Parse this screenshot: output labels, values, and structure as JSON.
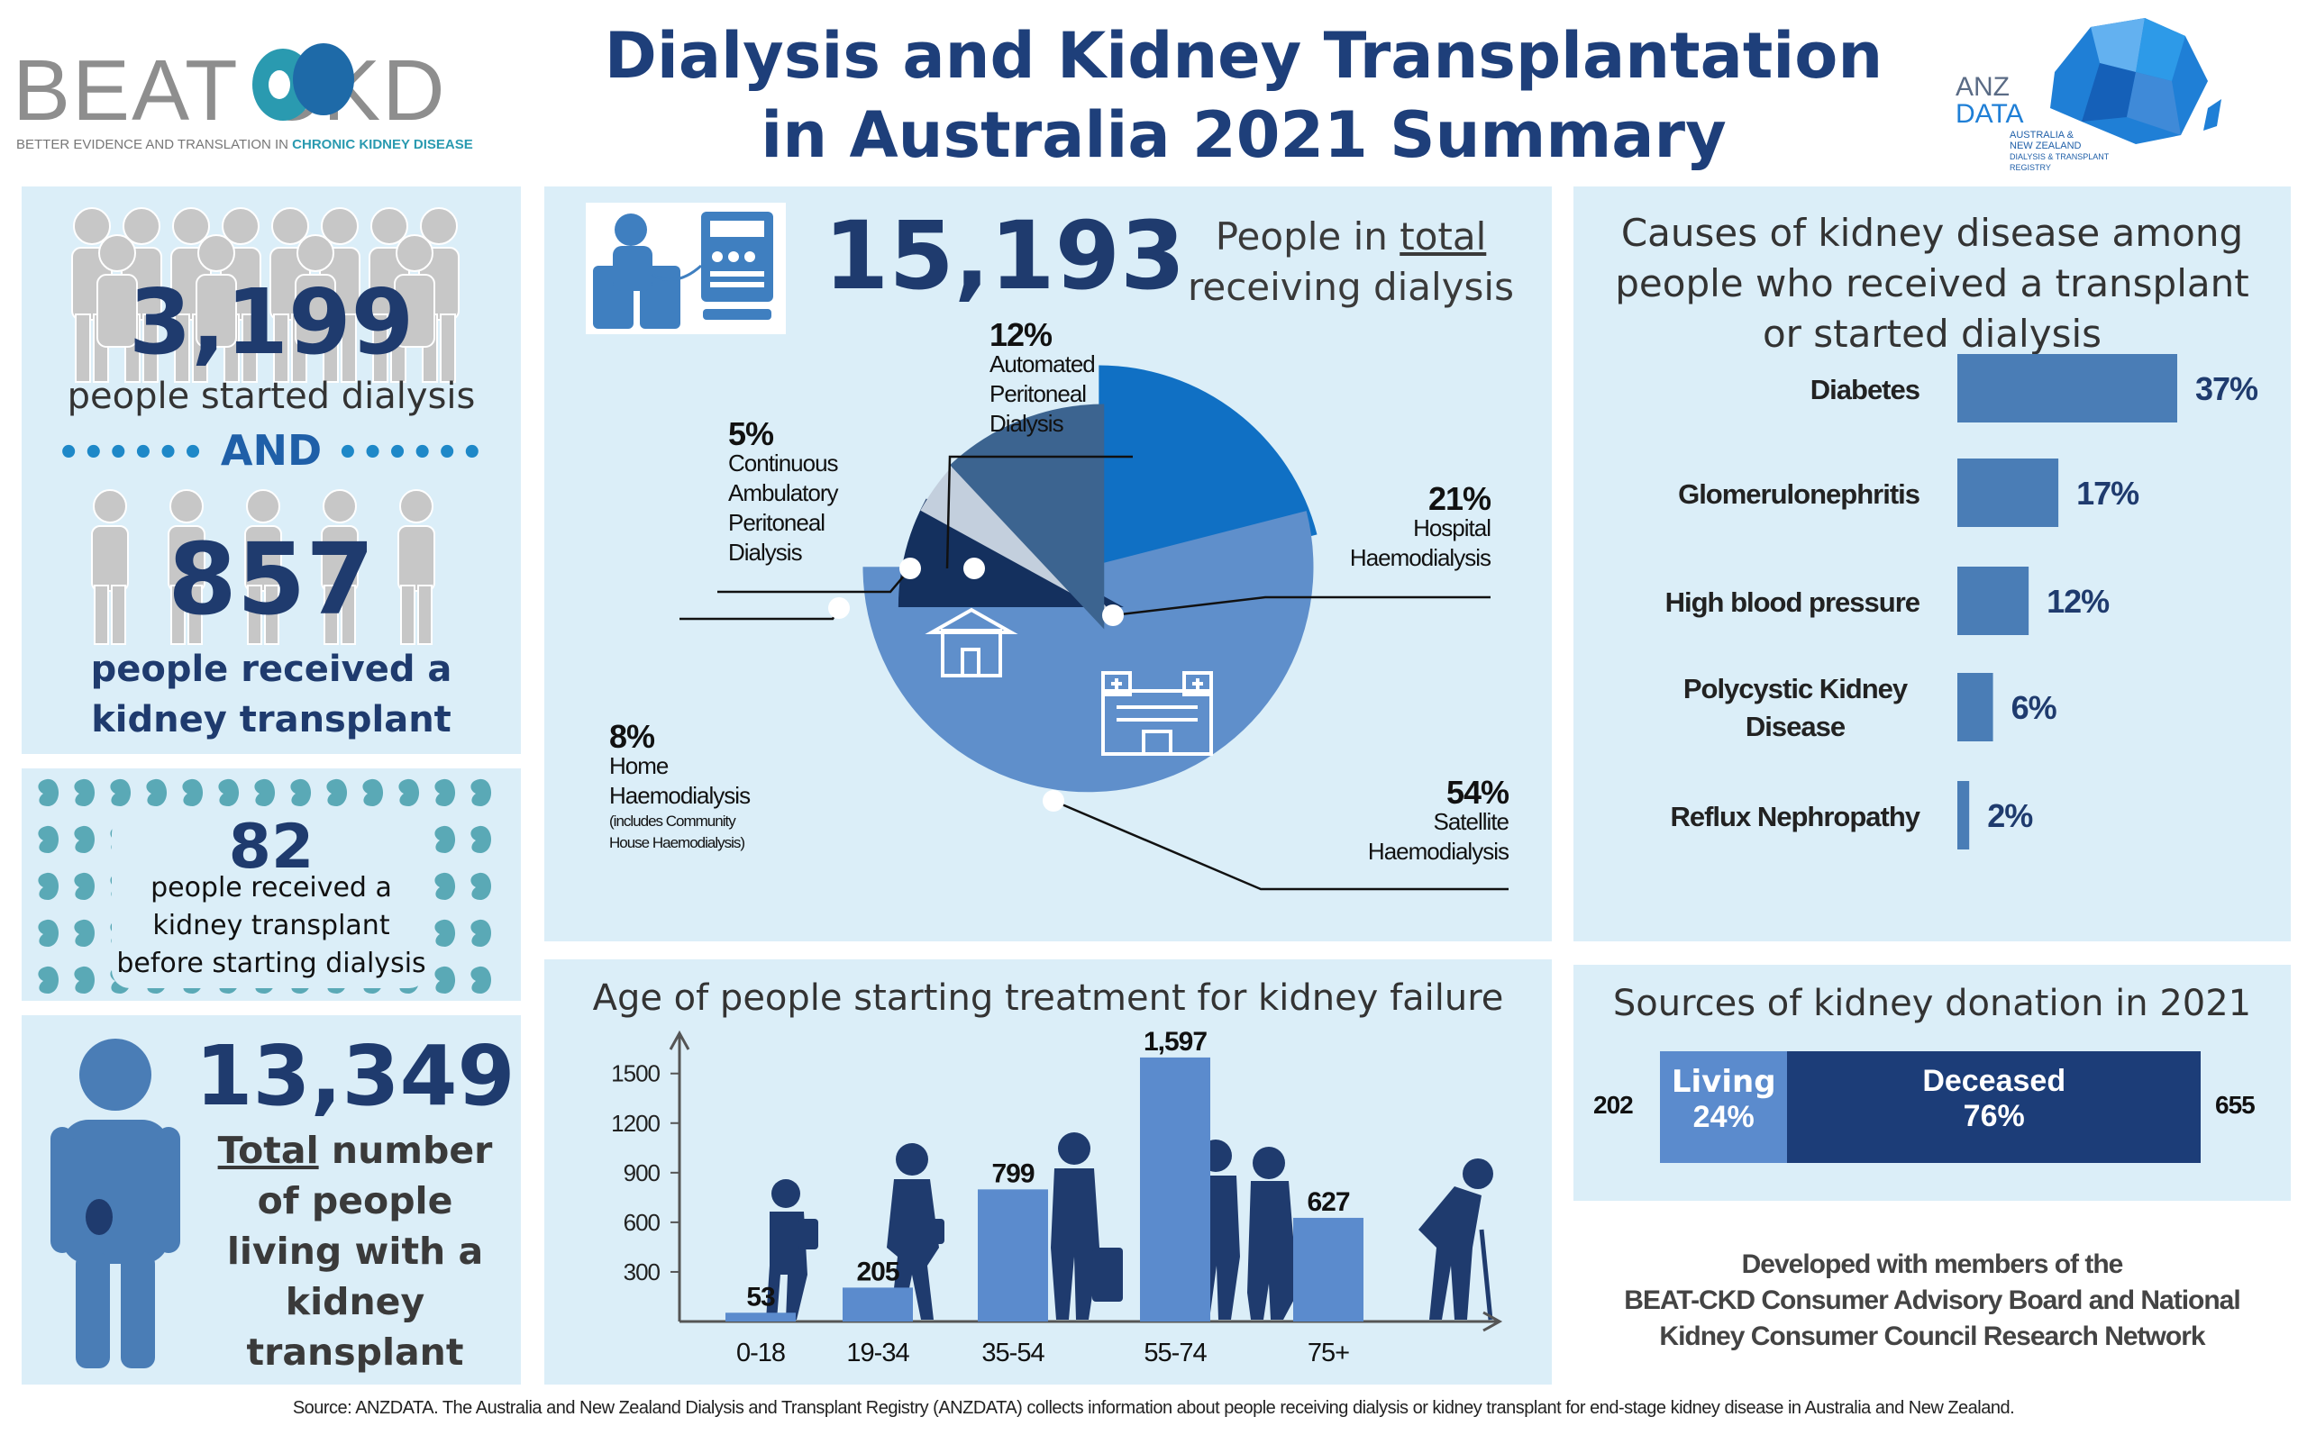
{
  "header": {
    "logo_left": "BEAT CKD",
    "logo_left_tagline_a": "BETTER EVIDENCE AND TRANSLATION IN ",
    "logo_left_tagline_b": "CHRONIC KIDNEY DISEASE",
    "title_line1": "Dialysis and Kidney Transplantation",
    "title_line2": "in Australia 2021 Summary",
    "logo_right_a": "ANZ",
    "logo_right_b": "DATA",
    "logo_right_sub1": "AUSTRALIA &",
    "logo_right_sub2": "NEW ZEALAND",
    "logo_right_sub3": "DIALYSIS & TRANSPLANT",
    "logo_right_sub4": "REGISTRY"
  },
  "left": {
    "started_value": "3,199",
    "started_label": "people started dialysis",
    "and_label": "AND",
    "transplant_value": "857",
    "transplant_label_1": "people received a",
    "transplant_label_2": "kidney transplant",
    "pre_value": "82",
    "pre_label_1": "people received a",
    "pre_label_2": "kidney transplant",
    "pre_label_3": "before starting dialysis",
    "living_value": "13,349",
    "living_label_total": "Total",
    "living_label_1": " number",
    "living_label_2": "of people",
    "living_label_3": "living with a",
    "living_label_4": "kidney",
    "living_label_5": "transplant"
  },
  "dialysis": {
    "total_value": "15,193",
    "total_label_a": "People in ",
    "total_label_total": "total",
    "total_label_b": "receiving dialysis",
    "slices": [
      {
        "pct": "21%",
        "l1": "Hospital",
        "l2": "Haemodialysis",
        "l3": "",
        "l4": "",
        "l5": ""
      },
      {
        "pct": "54%",
        "l1": "Satellite",
        "l2": "Haemodialysis",
        "l3": "",
        "l4": "",
        "l5": ""
      },
      {
        "pct": "8%",
        "l1": "Home",
        "l2": "Haemodialysis",
        "l3": "(includes Community",
        "l4": "House Haemodialysis)",
        "l5": ""
      },
      {
        "pct": "5%",
        "l1": "Continuous",
        "l2": "Ambulatory",
        "l3": "Peritoneal",
        "l4": "Dialysis",
        "l5": ""
      },
      {
        "pct": "12%",
        "l1": "Automated",
        "l2": "Peritoneal",
        "l3": "Dialysis",
        "l4": "",
        "l5": ""
      }
    ]
  },
  "causes": {
    "title_1": "Causes of kidney disease among",
    "title_2": "people who received a transplant",
    "title_3": "or started dialysis"
  },
  "age": {
    "title": "Age of people starting treatment for kidney failure"
  },
  "donation": {
    "title": "Sources of kidney donation in 2021",
    "living_count": "202",
    "living_label": "Living",
    "living_pct": "24%",
    "deceased_label": "Deceased",
    "deceased_pct": "76%",
    "deceased_count": "655"
  },
  "credits": {
    "line1": "Developed with members of the",
    "line2": "BEAT-CKD Consumer Advisory Board and  National",
    "line3": "Kidney Consumer Council Research Network"
  },
  "footer": {
    "source": "Source: ANZDATA. The Australia and New Zealand Dialysis and Transplant Registry (ANZDATA) collects information about people receiving dialysis or kidney transplant for end-stage kidney disease in Australia and New Zealand."
  },
  "colors": {
    "panel_bg": "#dbeef8",
    "navy": "#1f3b6e",
    "bar_blue": "#4a7db6",
    "hospital": "#1070c4",
    "satellite": "#5f8fcb",
    "home": "#14305e",
    "capd": "#c3cfdd",
    "apd": "#3c6490",
    "living": "#5b8bcd",
    "deceased": "#1c3d78"
  },
  "chart_data": [
    {
      "type": "pie",
      "title": "People in total receiving dialysis",
      "categories": [
        "Hospital Haemodialysis",
        "Satellite Haemodialysis",
        "Home Haemodialysis",
        "Continuous Ambulatory Peritoneal Dialysis",
        "Automated Peritoneal Dialysis"
      ],
      "values": [
        21,
        54,
        8,
        5,
        12
      ]
    },
    {
      "type": "bar",
      "orientation": "horizontal",
      "title": "Causes of kidney disease among people who received a transplant or started dialysis",
      "categories": [
        "Diabetes",
        "Glomerulonephritis",
        "High blood pressure",
        "Polycystic Kidney Disease",
        "Reflux Nephropathy"
      ],
      "values": [
        37,
        17,
        12,
        6,
        2
      ],
      "value_labels": [
        "37%",
        "17%",
        "12%",
        "6%",
        "2%"
      ],
      "xlim": [
        0,
        37
      ]
    },
    {
      "type": "bar",
      "title": "Age of people starting treatment for kidney failure",
      "categories": [
        "0-18",
        "19-34",
        "35-54",
        "55-74",
        "75+"
      ],
      "values": [
        53,
        205,
        799,
        1597,
        627
      ],
      "value_labels": [
        "53",
        "205",
        "799",
        "1,597",
        "627"
      ],
      "yticks": [
        "300",
        "600",
        "900",
        "1200",
        "1500"
      ],
      "ylim": [
        0,
        1700
      ]
    },
    {
      "type": "bar",
      "orientation": "stacked-horizontal",
      "title": "Sources of kidney donation in 2021",
      "categories": [
        "Living",
        "Deceased"
      ],
      "values": [
        202,
        655
      ],
      "percent": [
        24,
        76
      ]
    }
  ]
}
